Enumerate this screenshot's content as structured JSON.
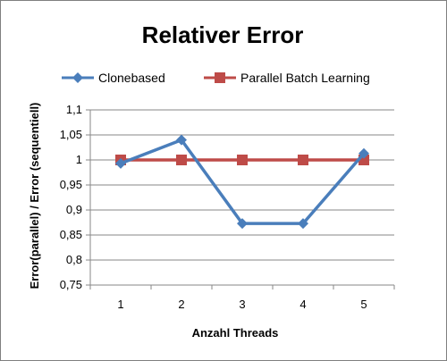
{
  "chart_data": {
    "type": "line",
    "title": "Relativer Error",
    "xlabel": "Anzahl Threads",
    "ylabel": "Error(parallel) / Error (sequentiell)",
    "categories": [
      "1",
      "2",
      "3",
      "4",
      "5"
    ],
    "ylim": [
      0.75,
      1.1
    ],
    "yticks": [
      "0,75",
      "0,8",
      "0,85",
      "0,9",
      "0,95",
      "1",
      "1,05",
      "1,1"
    ],
    "grid": true,
    "legend_position": "top",
    "series": [
      {
        "name": "Clonebased",
        "values": [
          0.993,
          1.04,
          0.873,
          0.873,
          1.013
        ],
        "color": "#4a7ebb",
        "marker": "diamond"
      },
      {
        "name": "Parallel Batch Learning",
        "values": [
          1.0,
          1.0,
          1.0,
          1.0,
          1.0
        ],
        "color": "#be4b48",
        "marker": "square"
      }
    ]
  }
}
